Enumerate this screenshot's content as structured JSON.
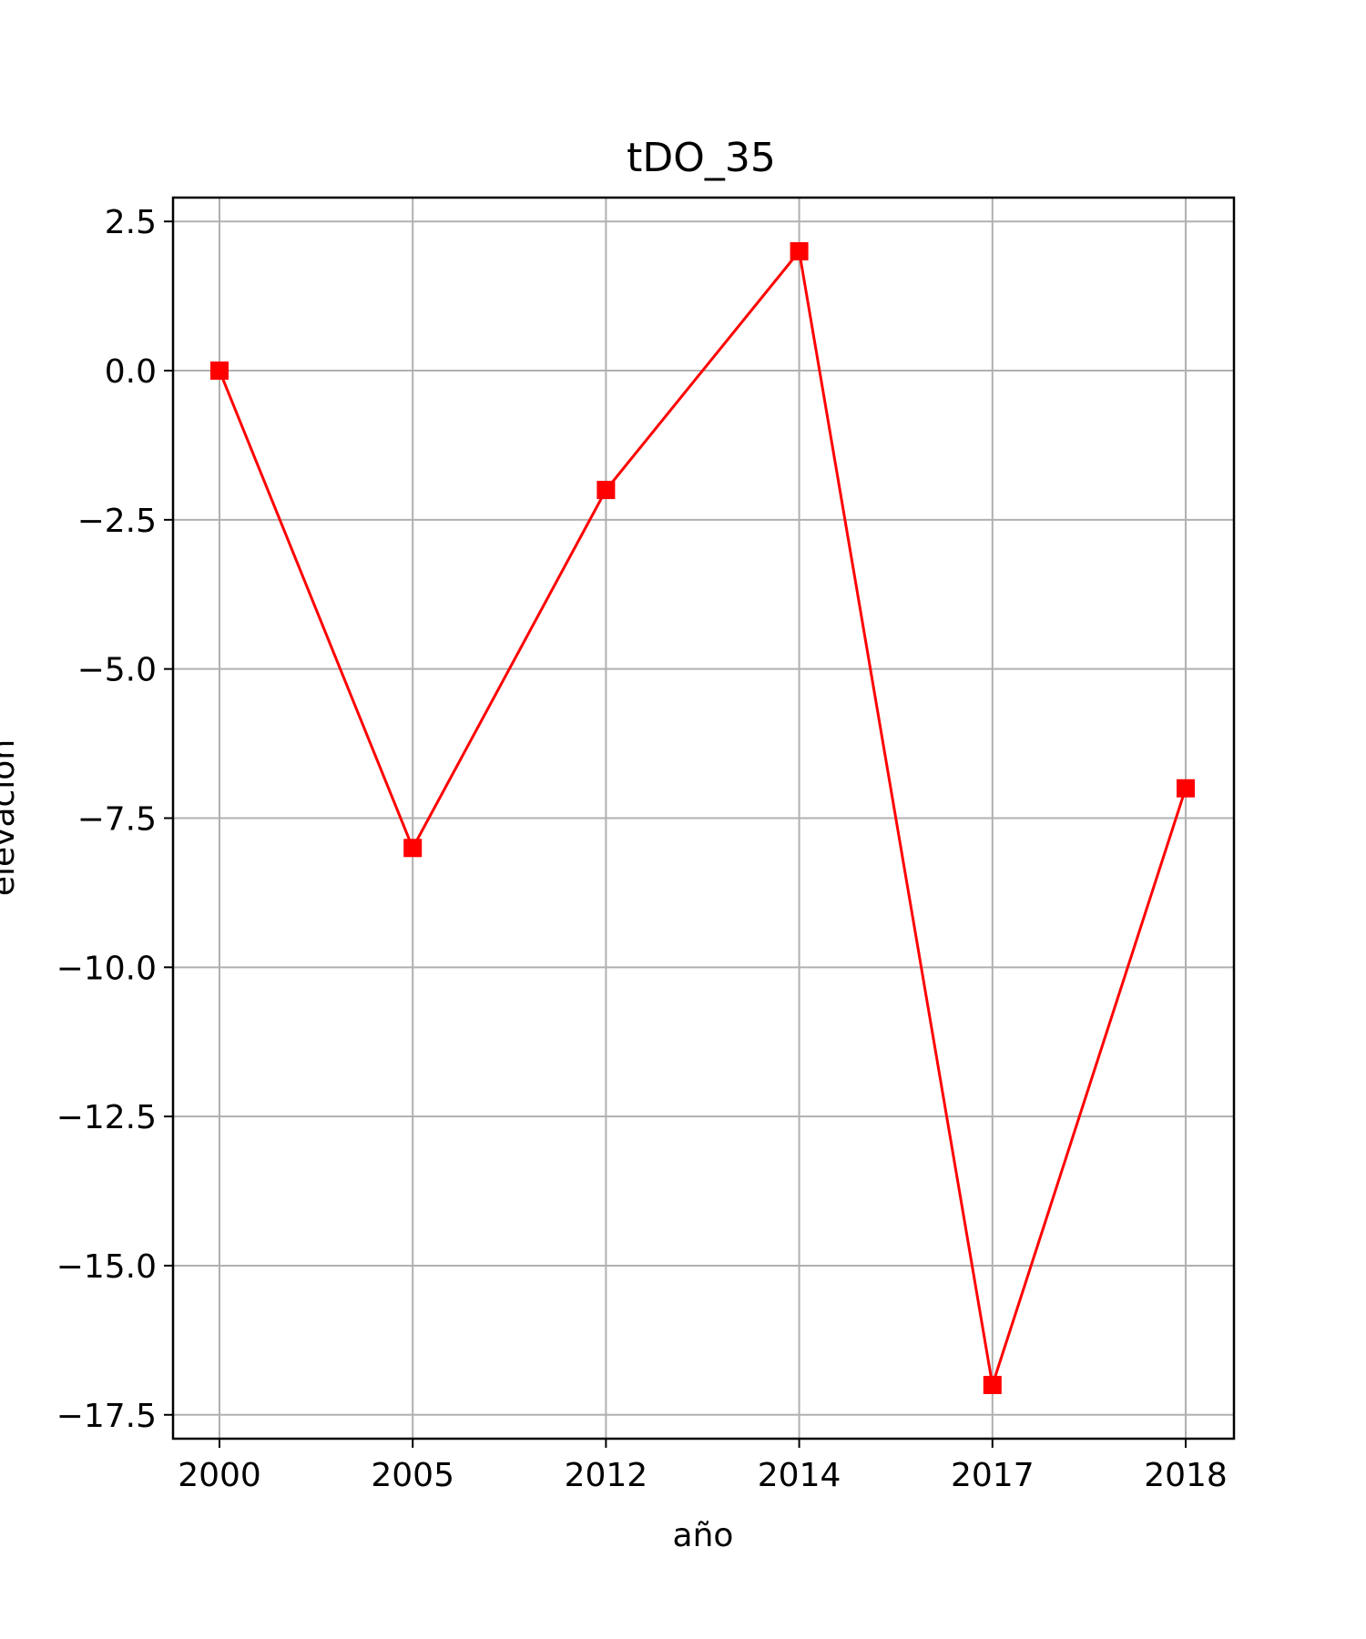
{
  "chart_data": {
    "type": "line",
    "title": "tDO_35",
    "xlabel": "año",
    "ylabel": "elevación",
    "categories": [
      "2000",
      "2005",
      "2012",
      "2014",
      "2017",
      "2018"
    ],
    "series": [
      {
        "values": [
          0,
          -8,
          -2,
          2,
          -17,
          -7
        ],
        "color": "#ff0000",
        "marker": "square"
      }
    ],
    "ylim": [
      -17.9,
      2.9
    ],
    "yticks": [
      2.5,
      0.0,
      -2.5,
      -5.0,
      -7.5,
      -10.0,
      -12.5,
      -15.0,
      -17.5
    ],
    "ytick_labels": [
      "2.5",
      "0.0",
      "−2.5",
      "−5.0",
      "−7.5",
      "−10.0",
      "−12.5",
      "−15.0",
      "−17.5"
    ],
    "grid": true,
    "grid_color": "#b0b0b0"
  }
}
